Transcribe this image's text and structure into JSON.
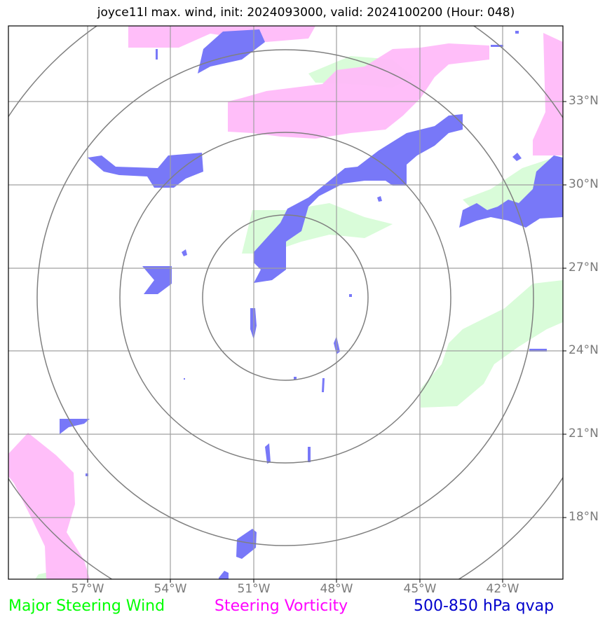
{
  "title": "joyce11l max. wind, init: 2024093000, valid: 2024100200 (Hour: 048)",
  "lat_ticks": [
    "33°N",
    "30°N",
    "27°N",
    "24°N",
    "21°N",
    "18°N"
  ],
  "lon_ticks": [
    "57°W",
    "54°W",
    "51°W",
    "48°W",
    "45°W",
    "42°W"
  ],
  "legend": [
    {
      "label": "Major Steering Wind",
      "color": "#00ff00"
    },
    {
      "label": "Steering Vorticity",
      "color": "#ff00ff"
    },
    {
      "label": "500-850 hPa qvap",
      "color": "#0000cc"
    }
  ],
  "colors": {
    "wind_fill": "#d9fcd9",
    "vorticity_fill": "#ffbbf9",
    "qvap_fill": "#7878f8",
    "grid": "#a0a0a0",
    "range_rings": "#808080"
  }
}
